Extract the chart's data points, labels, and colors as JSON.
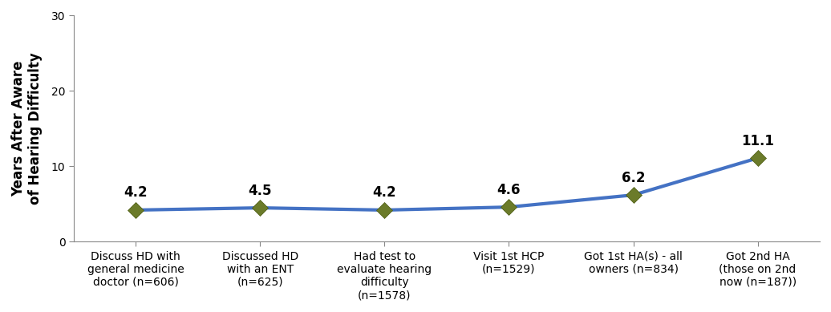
{
  "x_labels": [
    "Discuss HD with\ngeneral medicine\ndoctor (n=606)",
    "Discussed HD\nwith an ENT\n(n=625)",
    "Had test to\nevaluate hearing\ndifficulty\n(n=1578)",
    "Visit 1st HCP\n(n=1529)",
    "Got 1st HA(s) - all\nowners (n=834)",
    "Got 2nd HA\n(those on 2nd\nnow (n=187))"
  ],
  "y_values": [
    4.2,
    4.5,
    4.2,
    4.6,
    6.2,
    11.1
  ],
  "y_labels": [
    "4.2",
    "4.5",
    "4.2",
    "4.6",
    "6.2",
    "11.1"
  ],
  "line_color": "#4472C4",
  "marker_color": "#6B7B2A",
  "marker_edge_color": "#4A5A10",
  "ylabel": "Years After Aware\nof Hearing Difficulty",
  "ylim": [
    0,
    30
  ],
  "yticks": [
    0,
    10,
    20,
    30
  ],
  "line_width": 3.0,
  "marker_size": 10,
  "tick_fontsize": 10,
  "ylabel_fontsize": 12,
  "annotation_fontsize": 12,
  "spine_color": "#888888",
  "bg_color": "#ffffff"
}
